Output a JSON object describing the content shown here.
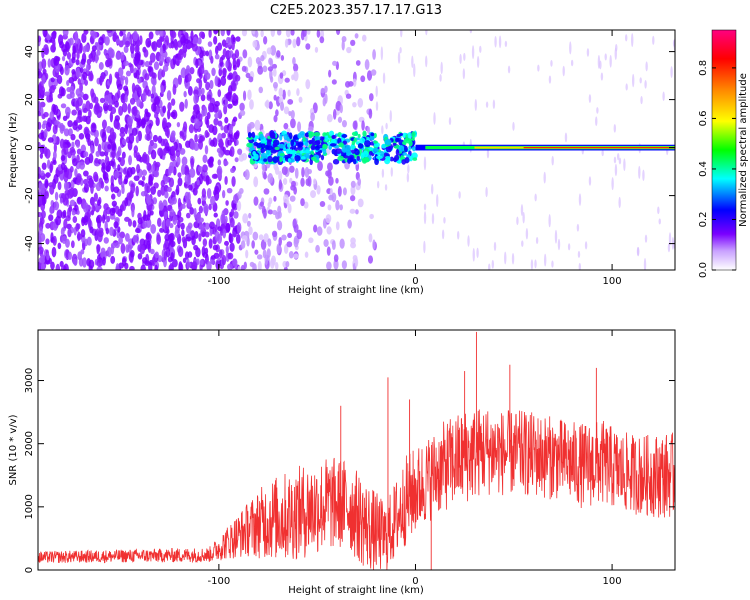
{
  "title": "C2E5.2023.357.17.17.G13",
  "chart_data": [
    {
      "type": "heatmap",
      "xlabel": "Height of straight line (km)",
      "ylabel": "Frequency (Hz)",
      "xlim": [
        -192,
        132
      ],
      "ylim": [
        -51,
        49
      ],
      "xticks": [
        -100,
        0,
        100
      ],
      "xtick_labels": [
        "-100",
        "0",
        "100"
      ],
      "yticks": [
        -40,
        -20,
        0,
        20,
        40
      ],
      "ytick_labels": [
        "-40",
        "-20",
        "0",
        "20",
        "40"
      ],
      "colorbar": {
        "label": "Normalized spectral amplitude",
        "range": [
          0,
          0.95
        ],
        "ticks": [
          0,
          0.2,
          0.4,
          0.6,
          0.8
        ],
        "tick_labels": [
          "0.0",
          "0.2",
          "0.4",
          "0.6",
          "0.8"
        ],
        "colormap": [
          "#ffffff",
          "#7a00ff",
          "#0000ff",
          "#00ffff",
          "#00ff00",
          "#ffff00",
          "#ff8800",
          "#ff0000",
          "#ff0080"
        ]
      },
      "features": {
        "noise_region_x": [
          -192,
          -20
        ],
        "signal_band_center_hz": 0,
        "signal_start_x": -85,
        "stable_tone_start_x": 0
      }
    },
    {
      "type": "line",
      "xlabel": "Height of straight line (km)",
      "ylabel": "SNR (10 * v/v)",
      "xlim": [
        -192,
        132
      ],
      "ylim": [
        0,
        3800
      ],
      "xticks": [
        -100,
        0,
        100
      ],
      "xtick_labels": [
        "-100",
        "0",
        "100"
      ],
      "yticks": [
        0,
        1000,
        2000,
        3000
      ],
      "ytick_labels": [
        "0",
        "1000",
        "2000",
        "3000"
      ],
      "color": "#f03030",
      "envelope": {
        "x": [
          -192,
          -150,
          -105,
          -95,
          -85,
          -75,
          -65,
          -55,
          -45,
          -35,
          -25,
          -15,
          -5,
          5,
          15,
          25,
          35,
          45,
          55,
          65,
          75,
          85,
          95,
          105,
          115,
          125,
          132
        ],
        "mean": [
          200,
          220,
          240,
          450,
          650,
          800,
          850,
          950,
          1050,
          1050,
          700,
          500,
          1100,
          1400,
          1650,
          1800,
          1900,
          1850,
          1850,
          1800,
          1750,
          1650,
          1700,
          1550,
          1500,
          1500,
          1500
        ],
        "spread": [
          120,
          130,
          150,
          350,
          550,
          800,
          900,
          950,
          950,
          900,
          900,
          700,
          900,
          850,
          900,
          950,
          900,
          850,
          850,
          850,
          800,
          850,
          850,
          800,
          800,
          850,
          850
        ]
      },
      "spikes": [
        {
          "x": 31,
          "y": 3770
        },
        {
          "x": 25,
          "y": 3150
        },
        {
          "x": 48,
          "y": 3250
        },
        {
          "x": -14,
          "y": 3050
        },
        {
          "x": -38,
          "y": 2600
        },
        {
          "x": 8,
          "y": 0
        },
        {
          "x": -3,
          "y": 2700
        },
        {
          "x": 92,
          "y": 3200
        }
      ]
    }
  ]
}
